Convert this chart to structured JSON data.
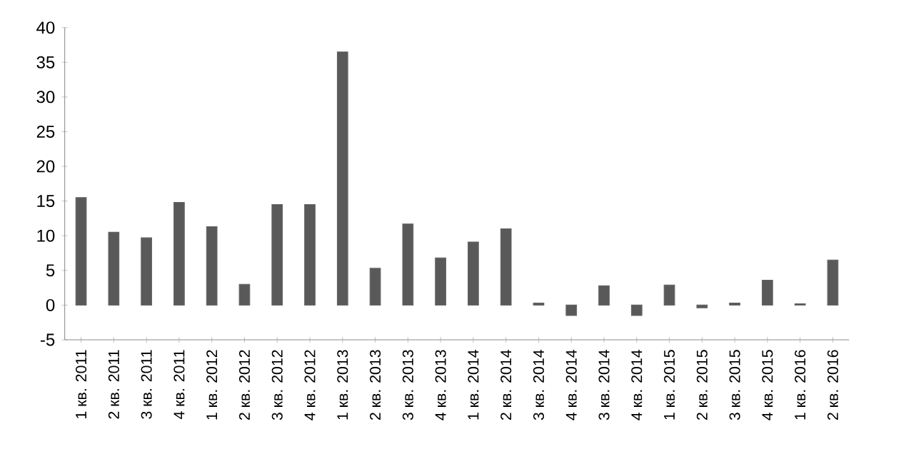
{
  "chart_data": {
    "type": "bar",
    "categories": [
      "1 кв. 2011",
      "2 кв. 2011",
      "3 кв. 2011",
      "4 кв. 2011",
      "1 кв. 2012",
      "2 кв. 2012",
      "3 кв. 2012",
      "4 кв. 2012",
      "1 кв. 2013",
      "2 кв. 2013",
      "3 кв. 2013",
      "4 кв. 2013",
      "1 кв. 2014",
      "2 кв. 2014",
      "3 кв. 2014",
      "4 кв. 2014",
      "3 кв. 2014",
      "4 кв. 2014",
      "1 кв. 2015",
      "2 кв. 2015",
      "3 кв. 2015",
      "4 кв. 2015",
      "1 кв. 2016",
      "2 кв. 2016"
    ],
    "values": [
      15.5,
      10.5,
      9.7,
      14.8,
      11.3,
      3,
      14.5,
      14.5,
      36.5,
      5.3,
      11.7,
      6.8,
      9.1,
      11,
      0.3,
      -1.5,
      2.8,
      -1.5,
      2.9,
      -0.4,
      0.3,
      3.6,
      0.2,
      6.5
    ],
    "color": "#595959",
    "ylim": [
      -5,
      40
    ],
    "yticks": [
      -5,
      0,
      5,
      10,
      15,
      20,
      25,
      30,
      35,
      40
    ]
  }
}
